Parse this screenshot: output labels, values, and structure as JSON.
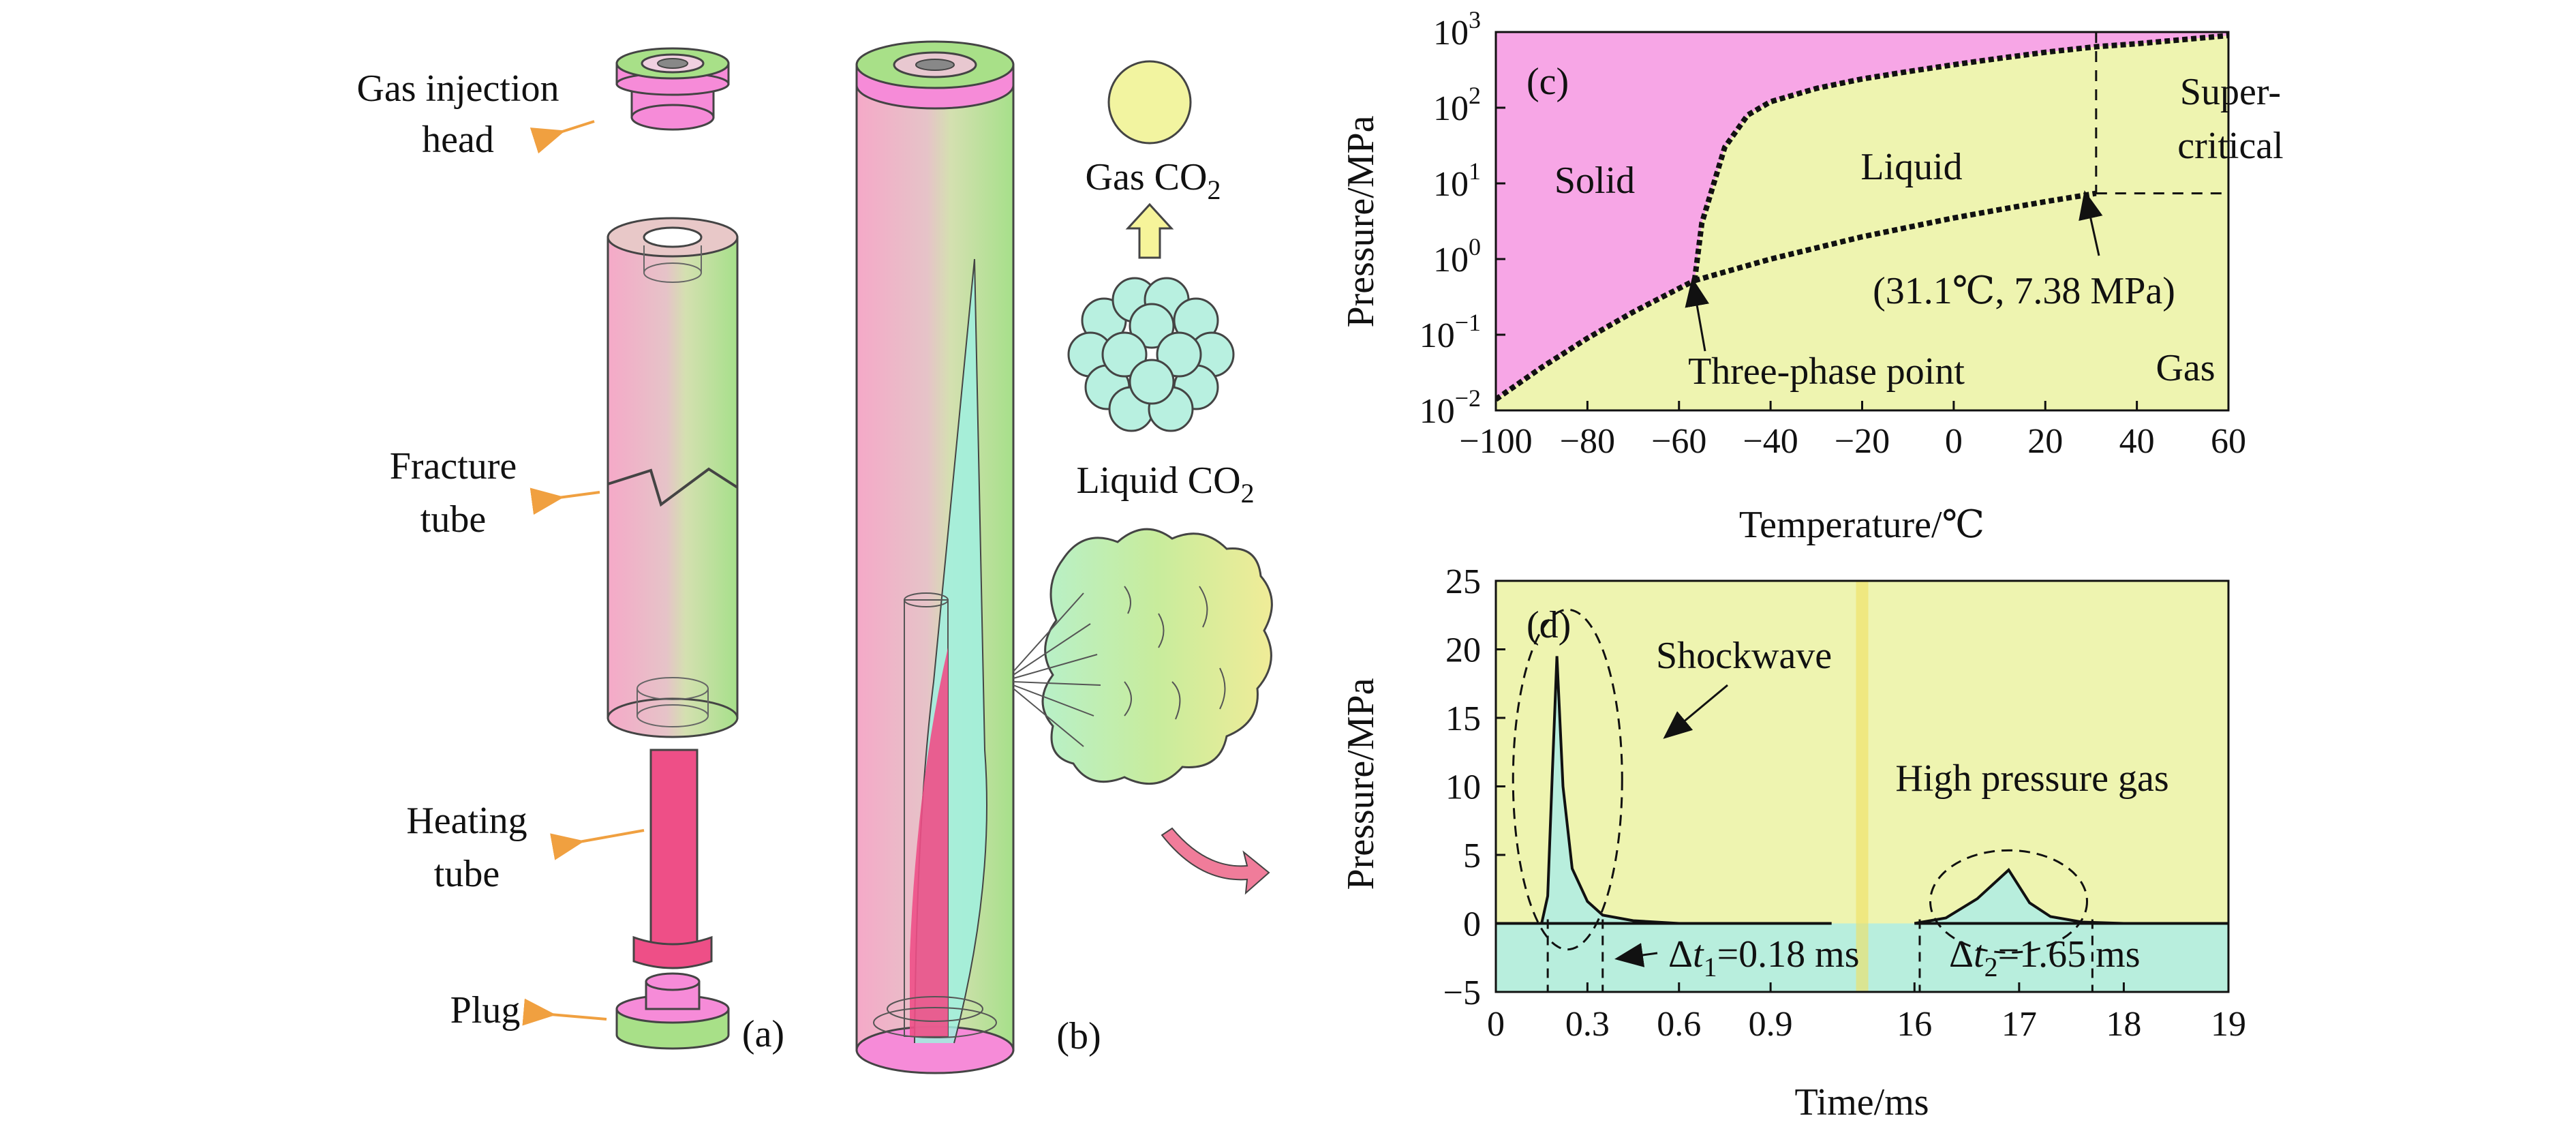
{
  "panel_a": {
    "tag": "(a)",
    "labels": {
      "gas_injection_head": [
        "Gas injection",
        "head"
      ],
      "fracture_tube": [
        "Fracture",
        "tube"
      ],
      "heating_tube": [
        "Heating",
        "tube"
      ],
      "plug": "Plug"
    }
  },
  "panel_b": {
    "tag": "(b)",
    "gas_co2": "Gas CO",
    "liquid_co2": "Liquid CO",
    "subscript": "2"
  },
  "panel_c": {
    "tag": "(c)",
    "ylabel": "Pressure/MPa",
    "xlabel": "Temperature/℃",
    "x_ticks": [
      "−100",
      "−80",
      "−60",
      "−40",
      "−20",
      "0",
      "20",
      "40",
      "60"
    ],
    "y_ticks_base": "10",
    "y_ticks_exp": [
      "−2",
      "−1",
      "0",
      "1",
      "2",
      "3"
    ],
    "region_labels": {
      "solid": "Solid",
      "liquid": "Liquid",
      "gas": "Gas",
      "super1": "Super-",
      "super2": "critical"
    },
    "annotations": {
      "three_phase": "Three-phase point",
      "critical": "(31.1℃, 7.38 MPa)"
    },
    "colors": {
      "solid": "#f7a6e6",
      "fluid": "#eef4b0"
    }
  },
  "panel_d": {
    "tag": "(d)",
    "ylabel": "Pressure/MPa",
    "xlabel": "Time/ms",
    "y_ticks": [
      "25",
      "20",
      "15",
      "10",
      "5",
      "0",
      "−5"
    ],
    "x_ticks": [
      "0",
      "0.3",
      "0.6",
      "0.9",
      "16",
      "17",
      "18",
      "19"
    ],
    "annotations": {
      "shockwave": "Shockwave",
      "high_pressure_gas": "High pressure gas"
    },
    "dt1": {
      "delta": "Δ",
      "t": "t",
      "sub": "1",
      "val": "=0.18 ms"
    },
    "dt2": {
      "delta": "Δ",
      "t": "t",
      "sub": "2",
      "val": "=1.65 ms"
    },
    "colors": {
      "above": "#eef4b0",
      "below": "#b8eedd"
    }
  },
  "chart_data": [
    {
      "type": "area",
      "title": "",
      "xlabel": "Temperature/℃",
      "ylabel": "Pressure/MPa",
      "xlim": [
        -100,
        60
      ],
      "ylim": [
        0.01,
        1000
      ],
      "yscale": "log",
      "grid": false,
      "series": [
        {
          "name": "",
          "x": [
            -100,
            -90,
            -80,
            -70,
            -60,
            -56.6
          ],
          "y": [
            0.014,
            0.037,
            0.09,
            0.2,
            0.41,
            0.52
          ]
        },
        {
          "name": "",
          "x": [
            -56.6,
            -55,
            -50,
            -45,
            -40,
            -30,
            -20,
            -10,
            0,
            10,
            20,
            31.1,
            40,
            60
          ],
          "y": [
            0.52,
            3,
            30,
            80,
            120,
            180,
            240,
            300,
            370,
            450,
            540,
            640,
            700,
            900
          ]
        },
        {
          "name": "",
          "x": [
            -56.6,
            -40,
            -20,
            0,
            10,
            20,
            31.1
          ],
          "y": [
            0.52,
            1.0,
            1.97,
            3.49,
            4.5,
            5.73,
            7.38
          ]
        }
      ],
      "points": [
        {
          "label": "Three-phase point",
          "x": -56.6,
          "y": 0.52
        },
        {
          "label": "(31.1℃, 7.38 MPa)",
          "x": 31.1,
          "y": 7.38
        }
      ]
    },
    {
      "type": "line",
      "title": "",
      "xlabel": "Time/ms",
      "ylabel": "Pressure/MPa",
      "ylim": [
        -5,
        25
      ],
      "x_axis_break": true,
      "series": [
        {
          "name": "",
          "x": [
            0,
            0.15,
            0.17,
            0.185,
            0.2,
            0.22,
            0.25,
            0.3,
            0.35,
            0.45,
            0.6,
            1.1
          ],
          "y": [
            0,
            0,
            2,
            11,
            19.5,
            10,
            4,
            1.6,
            0.6,
            0.2,
            0,
            0
          ]
        },
        {
          "name": "",
          "x": [
            16,
            16.3,
            16.6,
            16.9,
            17.1,
            17.3,
            17.6,
            18,
            19
          ],
          "y": [
            0,
            0.4,
            1.8,
            3.9,
            1.5,
            0.5,
            0.1,
            0,
            0
          ]
        }
      ]
    }
  ]
}
